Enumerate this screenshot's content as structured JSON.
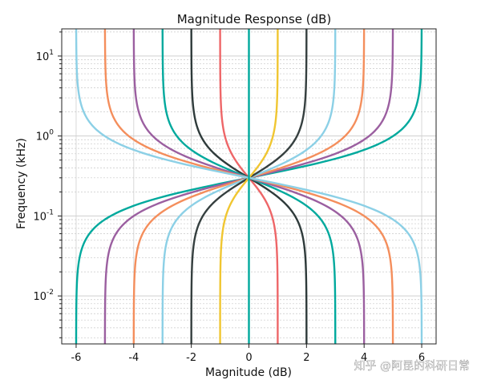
{
  "chart_data": {
    "type": "line",
    "title": "Magnitude Response (dB)",
    "xlabel": "Magnitude (dB)",
    "ylabel": "Frequency (kHz)",
    "xlim": [
      -6.5,
      6.5
    ],
    "ylim_log10": [
      -2.6,
      1.34
    ],
    "x_ticks": [
      "-6",
      "-4",
      "-2",
      "0",
      "2",
      "4",
      "6"
    ],
    "x_tick_values": [
      -6,
      -4,
      -2,
      0,
      2,
      4,
      6
    ],
    "y_ticks": [
      {
        "base": "10",
        "exp": "-2",
        "value": 0.01
      },
      {
        "base": "10",
        "exp": "-1",
        "value": 0.1
      },
      {
        "base": "10",
        "exp": "0",
        "value": 1
      },
      {
        "base": "10",
        "exp": "1",
        "value": 10
      }
    ],
    "grid": true,
    "series_description": "Low-shelf / high-shelf filter magnitude responses from -6 dB to +6 dB in 1 dB steps; low-frequency level = gain, high-frequency level = -gain",
    "series": [
      {
        "name": "shelf -6 dB",
        "low_gain": -6,
        "color": "#00a99d"
      },
      {
        "name": "shelf -5 dB",
        "low_gain": -5,
        "color": "#9b5fa0"
      },
      {
        "name": "shelf -4 dB",
        "low_gain": -4,
        "color": "#f48e5c"
      },
      {
        "name": "shelf -3 dB",
        "low_gain": -3,
        "color": "#8cd0e6"
      },
      {
        "name": "shelf -2 dB",
        "low_gain": -2,
        "color": "#353f3f"
      },
      {
        "name": "shelf -1 dB",
        "low_gain": -1,
        "color": "#f0c631"
      },
      {
        "name": "shelf +1 dB",
        "low_gain": 1,
        "color": "#ee6668"
      },
      {
        "name": "shelf +2 dB",
        "low_gain": 2,
        "color": "#2e3a3a"
      },
      {
        "name": "shelf +3 dB",
        "low_gain": 3,
        "color": "#00a99d"
      },
      {
        "name": "shelf +4 dB",
        "low_gain": 4,
        "color": "#9b5fa0"
      },
      {
        "name": "shelf +5 dB",
        "low_gain": 5,
        "color": "#f48e5c"
      },
      {
        "name": "shelf +6 dB",
        "low_gain": 6,
        "color": "#8cd0e6"
      }
    ],
    "zero_line_color": "#00a99d",
    "corner_frequency_khz": 0.3
  },
  "watermark": "知乎 @阿昆的科研日常"
}
